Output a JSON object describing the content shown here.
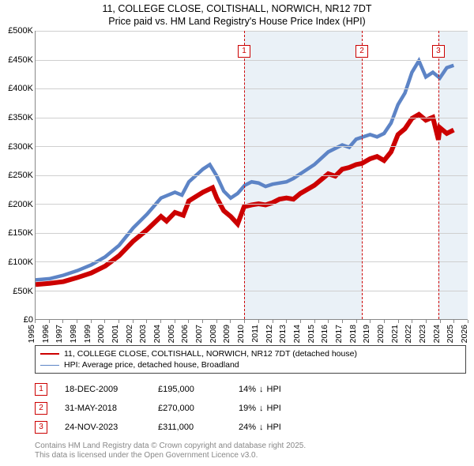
{
  "title": {
    "line1": "11, COLLEGE CLOSE, COLTISHALL, NORWICH, NR12 7DT",
    "line2": "Price paid vs. HM Land Registry's House Price Index (HPI)"
  },
  "chart": {
    "type": "line",
    "x_domain": [
      1995,
      2026
    ],
    "y_domain": [
      0,
      500
    ],
    "y_ticks": [
      0,
      50,
      100,
      150,
      200,
      250,
      300,
      350,
      400,
      450,
      500
    ],
    "y_tick_labels": [
      "£0",
      "£50K",
      "£100K",
      "£150K",
      "£200K",
      "£250K",
      "£300K",
      "£350K",
      "£400K",
      "£450K",
      "£500K"
    ],
    "x_ticks": [
      1995,
      1996,
      1997,
      1998,
      1999,
      2000,
      2001,
      2002,
      2003,
      2004,
      2005,
      2006,
      2007,
      2008,
      2009,
      2010,
      2011,
      2012,
      2013,
      2014,
      2015,
      2016,
      2017,
      2018,
      2019,
      2020,
      2021,
      2022,
      2023,
      2024,
      2025,
      2026
    ],
    "shaded_ranges": [
      {
        "from": 2009.96,
        "to": 2018.41
      },
      {
        "from": 2023.9,
        "to": 2026.0
      }
    ],
    "grid_color": "#cfcfcf",
    "background_color": "#ffffff",
    "shade_color": "#eaf1f7",
    "series": [
      {
        "name": "property",
        "color": "#cc0000",
        "width": 2,
        "points": [
          [
            1995,
            60
          ],
          [
            1996,
            62
          ],
          [
            1997,
            65
          ],
          [
            1998,
            72
          ],
          [
            1999,
            80
          ],
          [
            2000,
            92
          ],
          [
            2001,
            110
          ],
          [
            2002,
            135
          ],
          [
            2003,
            155
          ],
          [
            2004,
            178
          ],
          [
            2004.4,
            170
          ],
          [
            2005,
            185
          ],
          [
            2005.6,
            180
          ],
          [
            2006,
            205
          ],
          [
            2007,
            220
          ],
          [
            2007.7,
            228
          ],
          [
            2008,
            210
          ],
          [
            2008.5,
            188
          ],
          [
            2009,
            178
          ],
          [
            2009.5,
            165
          ],
          [
            2009.96,
            195
          ],
          [
            2010.5,
            198
          ],
          [
            2011,
            200
          ],
          [
            2011.5,
            198
          ],
          [
            2012,
            202
          ],
          [
            2012.5,
            208
          ],
          [
            2013,
            210
          ],
          [
            2013.5,
            208
          ],
          [
            2014,
            218
          ],
          [
            2015,
            232
          ],
          [
            2016,
            252
          ],
          [
            2016.5,
            248
          ],
          [
            2017,
            260
          ],
          [
            2017.5,
            263
          ],
          [
            2018,
            268
          ],
          [
            2018.41,
            270
          ],
          [
            2019,
            278
          ],
          [
            2019.5,
            282
          ],
          [
            2020,
            275
          ],
          [
            2020.5,
            290
          ],
          [
            2021,
            320
          ],
          [
            2021.5,
            330
          ],
          [
            2022,
            348
          ],
          [
            2022.5,
            355
          ],
          [
            2023,
            345
          ],
          [
            2023.5,
            350
          ],
          [
            2023.9,
            311
          ],
          [
            2024,
            332
          ],
          [
            2024.5,
            322
          ],
          [
            2025,
            328
          ]
        ]
      },
      {
        "name": "hpi",
        "color": "#5d84c6",
        "width": 1.5,
        "points": [
          [
            1995,
            68
          ],
          [
            1996,
            70
          ],
          [
            1997,
            76
          ],
          [
            1998,
            84
          ],
          [
            1999,
            94
          ],
          [
            2000,
            108
          ],
          [
            2001,
            128
          ],
          [
            2002,
            158
          ],
          [
            2003,
            182
          ],
          [
            2004,
            210
          ],
          [
            2005,
            220
          ],
          [
            2005.5,
            215
          ],
          [
            2006,
            238
          ],
          [
            2007,
            260
          ],
          [
            2007.5,
            268
          ],
          [
            2008,
            248
          ],
          [
            2008.5,
            222
          ],
          [
            2009,
            210
          ],
          [
            2009.5,
            218
          ],
          [
            2010,
            232
          ],
          [
            2010.5,
            238
          ],
          [
            2011,
            236
          ],
          [
            2011.5,
            230
          ],
          [
            2012,
            234
          ],
          [
            2013,
            238
          ],
          [
            2013.5,
            244
          ],
          [
            2014,
            252
          ],
          [
            2015,
            268
          ],
          [
            2016,
            290
          ],
          [
            2017,
            302
          ],
          [
            2017.5,
            298
          ],
          [
            2018,
            312
          ],
          [
            2019,
            320
          ],
          [
            2019.5,
            316
          ],
          [
            2020,
            322
          ],
          [
            2020.5,
            340
          ],
          [
            2021,
            372
          ],
          [
            2021.5,
            392
          ],
          [
            2022,
            428
          ],
          [
            2022.5,
            448
          ],
          [
            2023,
            420
          ],
          [
            2023.5,
            428
          ],
          [
            2024,
            418
          ],
          [
            2024.5,
            436
          ],
          [
            2025,
            440
          ]
        ]
      }
    ],
    "event_markers": [
      {
        "n": "1",
        "x": 2009.96,
        "y_box": 465
      },
      {
        "n": "2",
        "x": 2018.41,
        "y_box": 465
      },
      {
        "n": "3",
        "x": 2023.9,
        "y_box": 465
      }
    ]
  },
  "legend": {
    "items": [
      {
        "color": "#cc0000",
        "width": 2,
        "label": "11, COLLEGE CLOSE, COLTISHALL, NORWICH, NR12 7DT (detached house)"
      },
      {
        "color": "#5d84c6",
        "width": 1.5,
        "label": "HPI: Average price, detached house, Broadland"
      }
    ]
  },
  "events": [
    {
      "n": "1",
      "date": "18-DEC-2009",
      "price": "£195,000",
      "diff": "14%",
      "arrow": "↓",
      "diff_suffix": "HPI"
    },
    {
      "n": "2",
      "date": "31-MAY-2018",
      "price": "£270,000",
      "diff": "19%",
      "arrow": "↓",
      "diff_suffix": "HPI"
    },
    {
      "n": "3",
      "date": "24-NOV-2023",
      "price": "£311,000",
      "diff": "24%",
      "arrow": "↓",
      "diff_suffix": "HPI"
    }
  ],
  "footer": {
    "line1": "Contains HM Land Registry data © Crown copyright and database right 2025.",
    "line2": "This data is licensed under the Open Government Licence v3.0."
  }
}
